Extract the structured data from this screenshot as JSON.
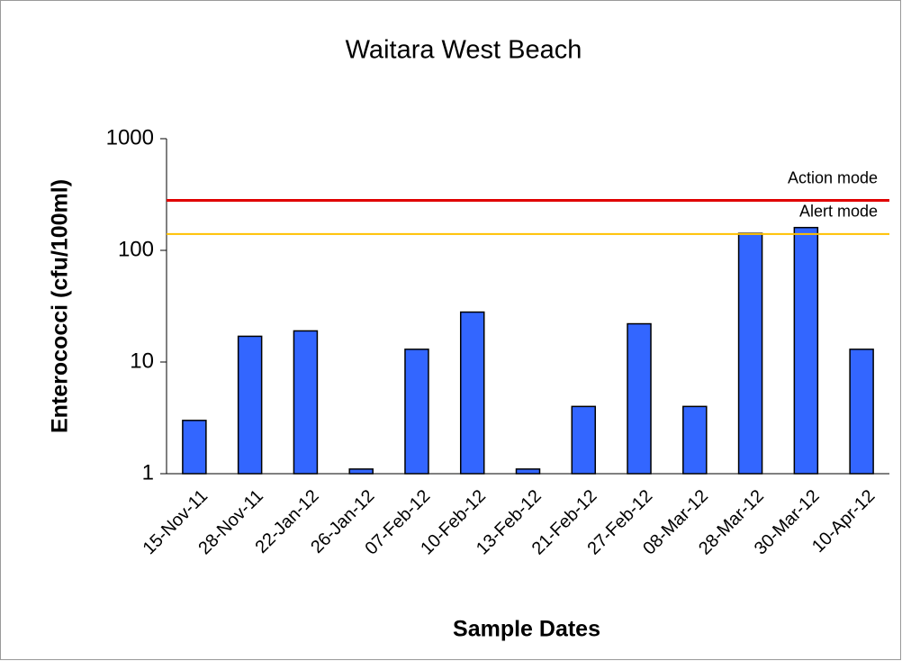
{
  "chart_data": {
    "type": "bar",
    "title": "Waitara West Beach",
    "x_label": "Sample Dates",
    "y_label": "Enterococci (cfu/100ml)",
    "categories": [
      "15-Nov-11",
      "28-Nov-11",
      "22-Jan-12",
      "26-Jan-12",
      "07-Feb-12",
      "10-Feb-12",
      "13-Feb-12",
      "21-Feb-12",
      "27-Feb-12",
      "08-Mar-12",
      "28-Mar-12",
      "30-Mar-12",
      "10-Apr-12"
    ],
    "values": [
      3,
      17,
      19,
      1.1,
      13,
      28,
      1.1,
      4,
      22,
      4,
      142,
      160,
      13
    ],
    "color": "#3366ff",
    "ylim": [
      1,
      1000
    ],
    "yticks": [
      1,
      10,
      100,
      1000
    ],
    "log_scale": true,
    "reference_lines": [
      {
        "label": "Action mode",
        "value": 280,
        "color": "#e00000"
      },
      {
        "label": "Alert mode",
        "value": 140,
        "color": "#ffc000"
      }
    ]
  }
}
